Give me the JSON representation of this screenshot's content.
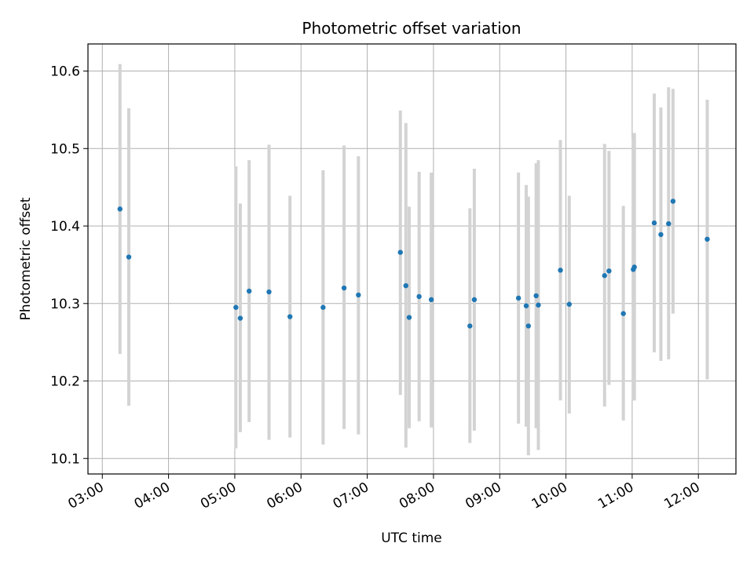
{
  "chart_data": {
    "type": "scatter",
    "title": "Photometric offset variation",
    "xlabel": "UTC time",
    "ylabel": "Photometric offset",
    "grid": true,
    "legend": "none",
    "xlim": [
      "02:47",
      "12:34"
    ],
    "ylim": [
      10.08,
      10.635
    ],
    "x_ticks": [
      "03:00",
      "04:00",
      "05:00",
      "06:00",
      "07:00",
      "08:00",
      "09:00",
      "10:00",
      "11:00",
      "12:00"
    ],
    "y_ticks": [
      "10.1",
      "10.2",
      "10.3",
      "10.4",
      "10.5",
      "10.6"
    ],
    "point_color": "#1f77b4",
    "errorbar_color": "#d3d3d3",
    "points": [
      {
        "x": "03:16",
        "y": 10.422,
        "ylow": 10.235,
        "yhigh": 10.609
      },
      {
        "x": "03:24",
        "y": 10.36,
        "ylow": 10.168,
        "yhigh": 10.552
      },
      {
        "x": "05:01",
        "y": 10.295,
        "ylow": 10.113,
        "yhigh": 10.477
      },
      {
        "x": "05:05",
        "y": 10.281,
        "ylow": 10.134,
        "yhigh": 10.429
      },
      {
        "x": "05:13",
        "y": 10.316,
        "ylow": 10.147,
        "yhigh": 10.485
      },
      {
        "x": "05:31",
        "y": 10.315,
        "ylow": 10.124,
        "yhigh": 10.505
      },
      {
        "x": "05:50",
        "y": 10.283,
        "ylow": 10.127,
        "yhigh": 10.439
      },
      {
        "x": "06:20",
        "y": 10.295,
        "ylow": 10.118,
        "yhigh": 10.472
      },
      {
        "x": "06:39",
        "y": 10.32,
        "ylow": 10.138,
        "yhigh": 10.504
      },
      {
        "x": "06:52",
        "y": 10.311,
        "ylow": 10.131,
        "yhigh": 10.49
      },
      {
        "x": "07:30",
        "y": 10.366,
        "ylow": 10.182,
        "yhigh": 10.549
      },
      {
        "x": "07:35",
        "y": 10.323,
        "ylow": 10.114,
        "yhigh": 10.533
      },
      {
        "x": "07:38",
        "y": 10.282,
        "ylow": 10.139,
        "yhigh": 10.425
      },
      {
        "x": "07:47",
        "y": 10.309,
        "ylow": 10.148,
        "yhigh": 10.47
      },
      {
        "x": "07:58",
        "y": 10.305,
        "ylow": 10.14,
        "yhigh": 10.469
      },
      {
        "x": "08:33",
        "y": 10.271,
        "ylow": 10.12,
        "yhigh": 10.423
      },
      {
        "x": "08:37",
        "y": 10.305,
        "ylow": 10.136,
        "yhigh": 10.474
      },
      {
        "x": "09:17",
        "y": 10.307,
        "ylow": 10.145,
        "yhigh": 10.469
      },
      {
        "x": "09:24",
        "y": 10.297,
        "ylow": 10.141,
        "yhigh": 10.453
      },
      {
        "x": "09:26",
        "y": 10.271,
        "ylow": 10.104,
        "yhigh": 10.438
      },
      {
        "x": "09:33",
        "y": 10.31,
        "ylow": 10.139,
        "yhigh": 10.481
      },
      {
        "x": "09:35",
        "y": 10.298,
        "ylow": 10.111,
        "yhigh": 10.485
      },
      {
        "x": "09:55",
        "y": 10.343,
        "ylow": 10.175,
        "yhigh": 10.511
      },
      {
        "x": "10:03",
        "y": 10.299,
        "ylow": 10.158,
        "yhigh": 10.439
      },
      {
        "x": "10:35",
        "y": 10.336,
        "ylow": 10.167,
        "yhigh": 10.506
      },
      {
        "x": "10:39",
        "y": 10.342,
        "ylow": 10.195,
        "yhigh": 10.497
      },
      {
        "x": "10:52",
        "y": 10.287,
        "ylow": 10.149,
        "yhigh": 10.426
      },
      {
        "x": "11:01",
        "y": 10.344,
        "ylow": 10.175,
        "yhigh": 10.513
      },
      {
        "x": "11:02",
        "y": 10.347,
        "ylow": 10.175,
        "yhigh": 10.52
      },
      {
        "x": "11:20",
        "y": 10.404,
        "ylow": 10.237,
        "yhigh": 10.571
      },
      {
        "x": "11:26",
        "y": 10.389,
        "ylow": 10.226,
        "yhigh": 10.553
      },
      {
        "x": "11:33",
        "y": 10.403,
        "ylow": 10.228,
        "yhigh": 10.579
      },
      {
        "x": "11:37",
        "y": 10.432,
        "ylow": 10.287,
        "yhigh": 10.577
      },
      {
        "x": "12:08",
        "y": 10.383,
        "ylow": 10.202,
        "yhigh": 10.563
      }
    ]
  }
}
